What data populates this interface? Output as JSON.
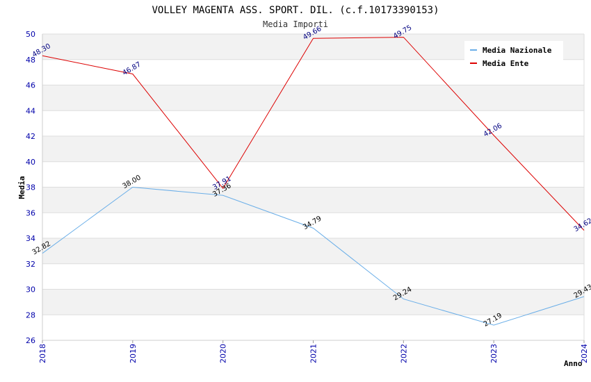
{
  "chart_data": {
    "type": "line",
    "title": "VOLLEY MAGENTA ASS. SPORT. DIL. (c.f.10173390153)",
    "subtitle": "Media Importi",
    "xlabel": "Anno",
    "ylabel": "Media",
    "x": [
      "2018",
      "2019",
      "2020",
      "2021",
      "2022",
      "2023",
      "2024"
    ],
    "ylim": [
      26,
      50
    ],
    "ytick_step": 2,
    "grid": true,
    "legend_position": "top-right",
    "series": [
      {
        "name": "Media Nazionale",
        "color": "#6aaee8",
        "values": [
          32.82,
          38.0,
          37.36,
          34.79,
          29.24,
          27.19,
          29.43
        ],
        "labels": [
          "32.82",
          "38.00",
          "37.36",
          "34.79",
          "29.24",
          "27.19",
          "29.43"
        ]
      },
      {
        "name": "Media Ente",
        "color": "#dd0000",
        "values": [
          48.3,
          46.87,
          37.91,
          49.66,
          49.75,
          42.06,
          34.62
        ],
        "labels": [
          "48.30",
          "46.87",
          "37.91",
          "49.66",
          "49.75",
          "42.06",
          "34.62"
        ]
      }
    ]
  }
}
